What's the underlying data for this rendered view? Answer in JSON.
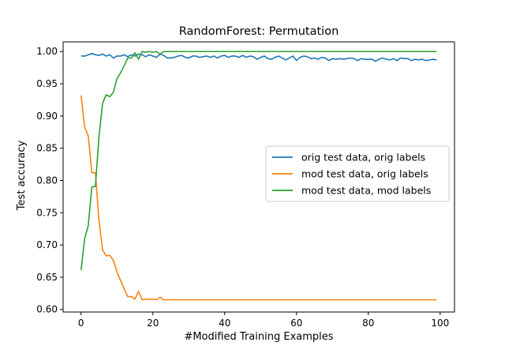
{
  "chart_data": {
    "type": "line",
    "title": "RandomForest: Permutation",
    "xlabel": "#Modified Training Examples",
    "ylabel": "Test accuracy",
    "xlim": [
      -5,
      104
    ],
    "ylim": [
      0.596,
      1.015
    ],
    "xticks": [
      0,
      20,
      40,
      60,
      80,
      100
    ],
    "yticks": [
      0.6,
      0.65,
      0.7,
      0.75,
      0.8,
      0.85,
      0.9,
      0.95,
      1.0
    ],
    "ytick_labels": [
      "0.60",
      "0.65",
      "0.70",
      "0.75",
      "0.80",
      "0.85",
      "0.90",
      "0.95",
      "1.00"
    ],
    "grid": false,
    "legend_position": "center-right",
    "series": [
      {
        "name": "orig test data, orig labels",
        "color": "#1f77b4",
        "x": [
          0,
          1,
          2,
          3,
          4,
          5,
          6,
          7,
          8,
          9,
          10,
          11,
          12,
          13,
          14,
          15,
          16,
          17,
          18,
          19,
          20,
          21,
          22,
          23,
          24,
          25,
          26,
          27,
          28,
          29,
          30,
          31,
          32,
          33,
          34,
          35,
          36,
          37,
          38,
          39,
          40,
          41,
          42,
          43,
          44,
          45,
          46,
          47,
          48,
          49,
          50,
          51,
          52,
          53,
          54,
          55,
          56,
          57,
          58,
          59,
          60,
          61,
          62,
          63,
          64,
          65,
          66,
          67,
          68,
          69,
          70,
          71,
          72,
          73,
          74,
          75,
          76,
          77,
          78,
          79,
          80,
          81,
          82,
          83,
          84,
          85,
          86,
          87,
          88,
          89,
          90,
          91,
          92,
          93,
          94,
          95,
          96,
          97,
          98,
          99
        ],
        "values": [
          0.993,
          0.993,
          0.995,
          0.997,
          0.995,
          0.994,
          0.996,
          0.993,
          0.995,
          0.99,
          0.993,
          0.993,
          0.995,
          0.992,
          0.995,
          0.993,
          0.996,
          0.995,
          0.992,
          0.995,
          0.993,
          0.991,
          0.996,
          0.994,
          0.99,
          0.99,
          0.991,
          0.993,
          0.994,
          0.991,
          0.99,
          0.993,
          0.993,
          0.991,
          0.992,
          0.993,
          0.991,
          0.993,
          0.99,
          0.993,
          0.994,
          0.991,
          0.993,
          0.993,
          0.991,
          0.994,
          0.991,
          0.993,
          0.992,
          0.988,
          0.991,
          0.993,
          0.989,
          0.988,
          0.991,
          0.993,
          0.99,
          0.987,
          0.99,
          0.993,
          0.986,
          0.991,
          0.993,
          0.992,
          0.989,
          0.99,
          0.988,
          0.991,
          0.99,
          0.986,
          0.989,
          0.988,
          0.989,
          0.988,
          0.989,
          0.99,
          0.989,
          0.986,
          0.989,
          0.988,
          0.988,
          0.988,
          0.985,
          0.988,
          0.99,
          0.988,
          0.987,
          0.989,
          0.986,
          0.99,
          0.989,
          0.989,
          0.986,
          0.988,
          0.987,
          0.988,
          0.986,
          0.987,
          0.988,
          0.987
        ]
      },
      {
        "name": "mod test data, orig labels",
        "color": "#ff7f0e",
        "x": [
          0,
          1,
          2,
          3,
          4,
          5,
          6,
          7,
          8,
          9,
          10,
          11,
          12,
          13,
          14,
          15,
          16,
          17,
          18,
          19,
          20,
          21,
          22,
          23,
          24,
          25,
          26,
          27,
          28,
          29,
          30,
          31,
          32,
          33,
          34,
          35,
          36,
          37,
          38,
          39,
          40,
          41,
          42,
          43,
          44,
          45,
          46,
          47,
          48,
          49,
          50,
          51,
          52,
          53,
          54,
          55,
          56,
          57,
          58,
          59,
          60,
          61,
          62,
          63,
          64,
          65,
          66,
          67,
          68,
          69,
          70,
          71,
          72,
          73,
          74,
          75,
          76,
          77,
          78,
          79,
          80,
          81,
          82,
          83,
          84,
          85,
          86,
          87,
          88,
          89,
          90,
          91,
          92,
          93,
          94,
          95,
          96,
          97,
          98,
          99
        ],
        "values": [
          0.932,
          0.883,
          0.869,
          0.812,
          0.812,
          0.737,
          0.692,
          0.683,
          0.684,
          0.676,
          0.658,
          0.645,
          0.632,
          0.62,
          0.62,
          0.616,
          0.628,
          0.615,
          0.616,
          0.616,
          0.616,
          0.615,
          0.619,
          0.615,
          0.615,
          0.615,
          0.615,
          0.615,
          0.615,
          0.615,
          0.615,
          0.615,
          0.615,
          0.615,
          0.615,
          0.615,
          0.615,
          0.615,
          0.615,
          0.615,
          0.615,
          0.615,
          0.615,
          0.615,
          0.615,
          0.615,
          0.615,
          0.615,
          0.615,
          0.615,
          0.615,
          0.615,
          0.615,
          0.615,
          0.615,
          0.615,
          0.615,
          0.615,
          0.615,
          0.615,
          0.615,
          0.615,
          0.615,
          0.615,
          0.615,
          0.615,
          0.615,
          0.615,
          0.615,
          0.615,
          0.615,
          0.615,
          0.615,
          0.615,
          0.615,
          0.615,
          0.615,
          0.615,
          0.615,
          0.615,
          0.615,
          0.615,
          0.615,
          0.615,
          0.615,
          0.615,
          0.615,
          0.615,
          0.615,
          0.615,
          0.615,
          0.615,
          0.615,
          0.615,
          0.615,
          0.615,
          0.615,
          0.615,
          0.615,
          0.615
        ]
      },
      {
        "name": "mod test data, mod labels",
        "color": "#2ca02c",
        "x": [
          0,
          1,
          2,
          3,
          4,
          5,
          6,
          7,
          8,
          9,
          10,
          11,
          12,
          13,
          14,
          15,
          16,
          17,
          18,
          19,
          20,
          21,
          22,
          23,
          24,
          25,
          26,
          27,
          28,
          29,
          30,
          31,
          32,
          33,
          34,
          35,
          36,
          37,
          38,
          39,
          40,
          41,
          42,
          43,
          44,
          45,
          46,
          47,
          48,
          49,
          50,
          51,
          52,
          53,
          54,
          55,
          56,
          57,
          58,
          59,
          60,
          61,
          62,
          63,
          64,
          65,
          66,
          67,
          68,
          69,
          70,
          71,
          72,
          73,
          74,
          75,
          76,
          77,
          78,
          79,
          80,
          81,
          82,
          83,
          84,
          85,
          86,
          87,
          88,
          89,
          90,
          91,
          92,
          93,
          94,
          95,
          96,
          97,
          98,
          99
        ],
        "values": [
          0.661,
          0.71,
          0.73,
          0.79,
          0.791,
          0.869,
          0.92,
          0.933,
          0.93,
          0.937,
          0.958,
          0.967,
          0.978,
          0.99,
          0.99,
          0.998,
          0.988,
          1.0,
          0.999,
          1.0,
          0.999,
          1.0,
          0.996,
          1.0,
          1.0,
          1.0,
          1.0,
          1.0,
          1.0,
          1.0,
          1.0,
          1.0,
          1.0,
          1.0,
          1.0,
          1.0,
          1.0,
          1.0,
          1.0,
          1.0,
          1.0,
          1.0,
          1.0,
          1.0,
          1.0,
          1.0,
          1.0,
          1.0,
          1.0,
          1.0,
          1.0,
          1.0,
          1.0,
          1.0,
          1.0,
          1.0,
          1.0,
          1.0,
          1.0,
          1.0,
          1.0,
          1.0,
          1.0,
          1.0,
          1.0,
          1.0,
          1.0,
          1.0,
          1.0,
          1.0,
          1.0,
          1.0,
          1.0,
          1.0,
          1.0,
          1.0,
          1.0,
          1.0,
          1.0,
          1.0,
          1.0,
          1.0,
          1.0,
          1.0,
          1.0,
          1.0,
          1.0,
          1.0,
          1.0,
          1.0,
          1.0,
          1.0,
          1.0,
          1.0,
          1.0,
          1.0,
          1.0,
          1.0,
          1.0,
          1.0
        ]
      }
    ]
  }
}
